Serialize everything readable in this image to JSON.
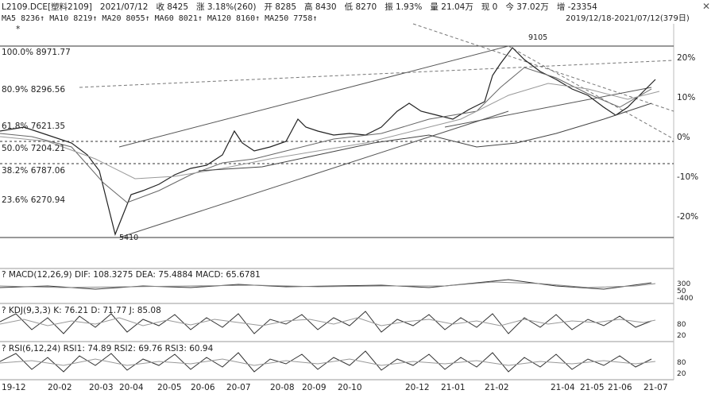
{
  "header": {
    "symbol": "L2109.DCE[塑料2109]",
    "date": "2021/07/12",
    "open": "收 8425",
    "change": "涨 3.18%(260)",
    "prev": "开 8285",
    "high": "高 8430",
    "low": "低 8270",
    "amplitude": "振 1.93%",
    "volume": "量 21.04万",
    "inner": "现 0",
    "turnover": "今 37.02万",
    "oi": "增 -23354",
    "range": "2019/12/18-2021/07/12(379日)",
    "close_icon": "close-icon"
  },
  "ma_line": "MA5 8236↑  MA10 8219↑  MA20 8055↑  MA60 8021↑  MA120 8160↑  MA250 7758↑",
  "fib": {
    "l100": "100.0%  8971.77",
    "l809": "80.9%  8296.56",
    "l618": "61.8%  7621.35",
    "l500": "50.0%  7204.21",
    "l382": "38.2%  6787.06",
    "l236": "23.6%  6270.94"
  },
  "annot": {
    "high": "9105",
    "low": "5410",
    "top_star": "*"
  },
  "right_axis": [
    "20%",
    "10%",
    "0%",
    "-10%",
    "-20%"
  ],
  "panels": {
    "macd": {
      "label": "?  MACD(12,26,9)  DIF: 108.3275  DEA: 75.4884  MACD: 65.6781",
      "ticks": [
        "300",
        "50",
        "-400"
      ]
    },
    "kdj": {
      "label": "?  KDJ(9,3,3)  K: 76.21  D: 71.77  J: 85.08",
      "ticks": [
        "80",
        "20"
      ]
    },
    "rsi": {
      "label": "?  RSI(6,12,24)  RSI1: 74.89  RSI2: 69.76  RSI3: 60.94",
      "ticks": [
        "80",
        "20"
      ]
    }
  },
  "x_axis": [
    "19-12",
    "20-02",
    "20-03",
    "20-04",
    "20-05",
    "20-06",
    "20-07",
    "20-08",
    "20-09",
    "20-10",
    "20-12",
    "21-01",
    "21-02",
    "21-04",
    "21-05",
    "21-06",
    "21-07"
  ]
}
